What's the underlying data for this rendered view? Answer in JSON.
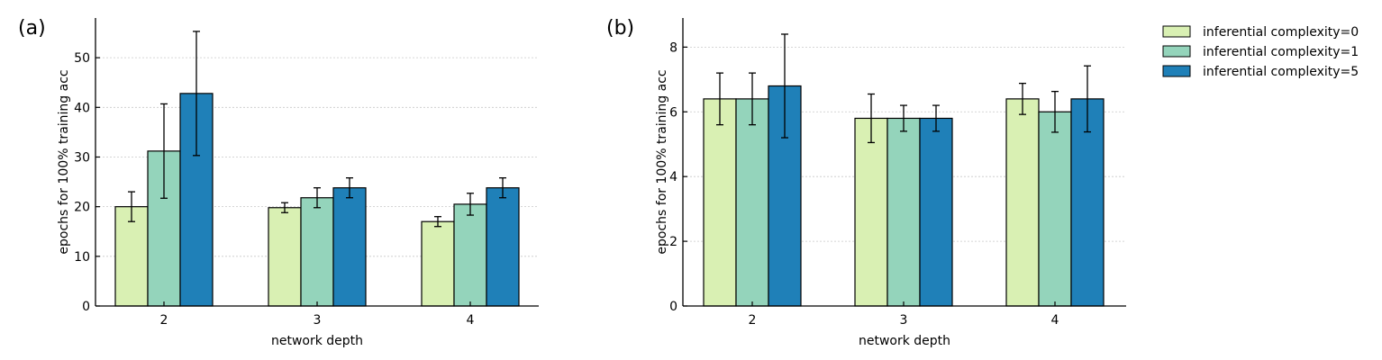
{
  "chart_data": [
    {
      "type": "bar",
      "panel_label": "(a)",
      "categories": [
        "2",
        "3",
        "4"
      ],
      "xlabel": "network depth",
      "ylabel": "epochs for 100% training acc",
      "ylim": [
        0,
        58
      ],
      "yticks": [
        0,
        10,
        20,
        30,
        40,
        50
      ],
      "grid": true,
      "series": [
        {
          "name": "inferential complexity=0",
          "color": "#d9f0b3",
          "values": [
            20.0,
            19.8,
            17.0
          ],
          "errors": [
            3.0,
            1.0,
            1.0
          ]
        },
        {
          "name": "inferential complexity=1",
          "color": "#94d4bb",
          "values": [
            31.2,
            21.8,
            20.5
          ],
          "errors": [
            9.5,
            2.0,
            2.2
          ]
        },
        {
          "name": "inferential complexity=5",
          "color": "#1f80b8",
          "values": [
            42.8,
            23.8,
            23.8
          ],
          "errors": [
            12.5,
            2.0,
            2.0
          ]
        }
      ]
    },
    {
      "type": "bar",
      "panel_label": "(b)",
      "categories": [
        "2",
        "3",
        "4"
      ],
      "xlabel": "network depth",
      "ylabel": "epochs for 100% training acc",
      "ylim": [
        0,
        8.9
      ],
      "yticks": [
        0,
        2,
        4,
        6,
        8
      ],
      "grid": true,
      "series": [
        {
          "name": "inferential complexity=0",
          "color": "#d9f0b3",
          "values": [
            6.4,
            5.8,
            6.4
          ],
          "errors": [
            0.8,
            0.75,
            0.48
          ]
        },
        {
          "name": "inferential complexity=1",
          "color": "#94d4bb",
          "values": [
            6.4,
            5.8,
            6.0
          ],
          "errors": [
            0.8,
            0.4,
            0.63
          ]
        },
        {
          "name": "inferential complexity=5",
          "color": "#1f80b8",
          "values": [
            6.8,
            5.8,
            6.4
          ],
          "errors": [
            1.6,
            0.4,
            1.02
          ]
        }
      ]
    }
  ],
  "legend": {
    "position": "top-right",
    "entries": [
      {
        "label": "inferential complexity=0",
        "color": "#d9f0b3"
      },
      {
        "label": "inferential complexity=1",
        "color": "#94d4bb"
      },
      {
        "label": "inferential complexity=5",
        "color": "#1f80b8"
      }
    ]
  }
}
